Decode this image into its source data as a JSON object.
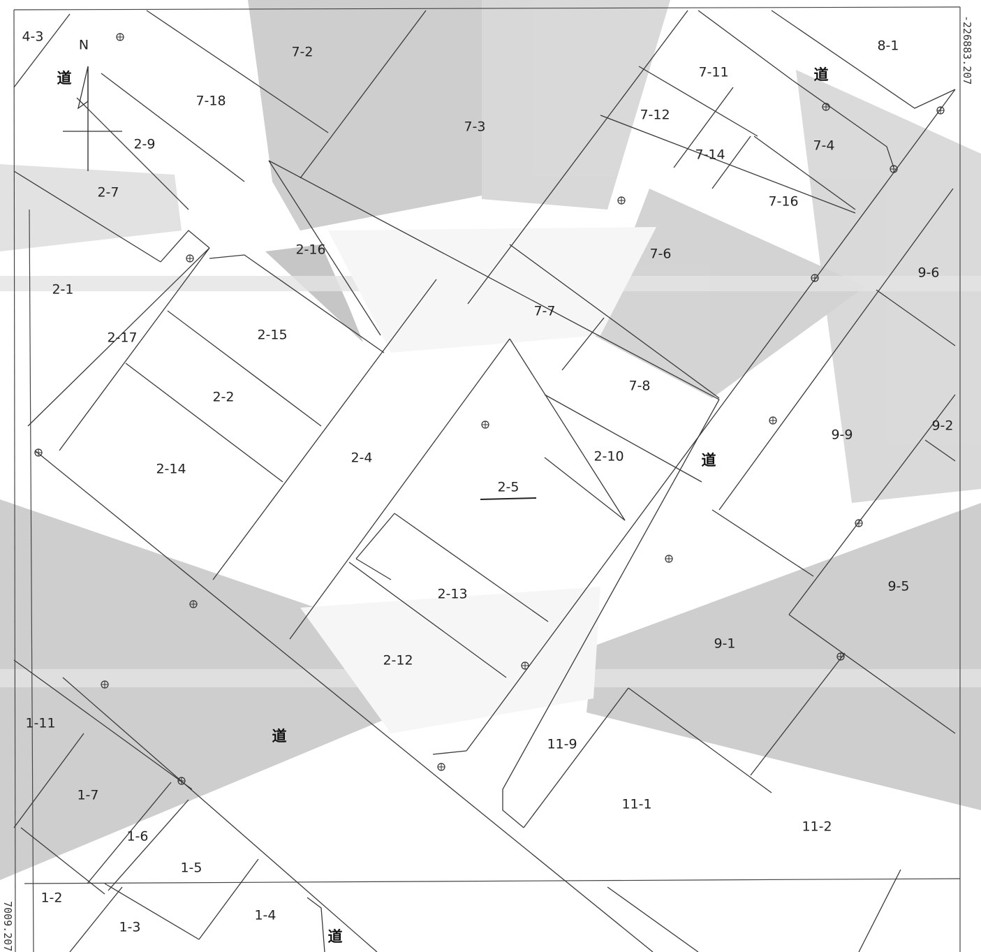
{
  "map": {
    "north_label": "N",
    "road_label": "道",
    "edge_labels": {
      "right_top": "-226883.207",
      "left_bottom": "7009.207"
    },
    "colors": {
      "background": "#ffffff",
      "gray_fill": "#b4b4b4",
      "light_fill": "#e6e6e6",
      "line": "#3a3a3a",
      "text": "#222222"
    },
    "parcels": [
      "4-3",
      "7-2",
      "7-18",
      "2-9",
      "2-7",
      "7-3",
      "7-11",
      "7-12",
      "7-14",
      "8-1",
      "7-4",
      "7-16",
      "2-16",
      "2-1",
      "2-17",
      "2-15",
      "7-6",
      "9-6",
      "7-7",
      "7-8",
      "2-2",
      "2-14",
      "2-4",
      "2-5",
      "2-10",
      "9-9",
      "9-2",
      "2-13",
      "9-5",
      "9-1",
      "2-12",
      "1-11",
      "11-9",
      "1-7",
      "11-1",
      "11-2",
      "1-6",
      "1-5",
      "1-2",
      "1-3",
      "1-4"
    ],
    "roads_count": 5
  }
}
